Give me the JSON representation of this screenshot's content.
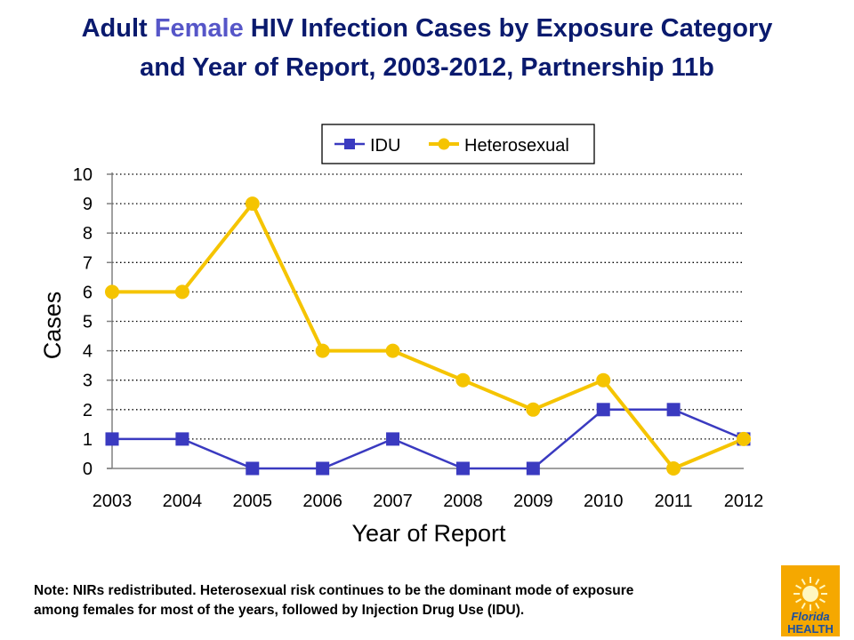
{
  "title": {
    "line1_part1": "Adult",
    "line1_accent": "Female",
    "line1_part2": "HIV Infection Cases by Exposure Category",
    "line2": "and Year of Report,  2003-2012, Partnership 11b"
  },
  "colors": {
    "title": "#0a1a6e",
    "title_accent": "#5656c8",
    "idu": "#3a3ac0",
    "heterosexual": "#f5c400"
  },
  "chart_data": {
    "type": "line",
    "x": [
      "2003",
      "2004",
      "2005",
      "2006",
      "2007",
      "2008",
      "2009",
      "2010",
      "2011",
      "2012"
    ],
    "series": [
      {
        "name": "IDU",
        "values": [
          1,
          1,
          0,
          0,
          1,
          0,
          0,
          2,
          2,
          1
        ],
        "color": "#3a3ac0",
        "marker": "square"
      },
      {
        "name": "Heterosexual",
        "values": [
          6,
          6,
          9,
          4,
          4,
          3,
          2,
          3,
          0,
          1
        ],
        "color": "#f5c400",
        "marker": "circle"
      }
    ],
    "xlabel": "Year of Report",
    "ylabel": "Cases",
    "ylim": [
      0,
      10
    ],
    "yticks": [
      0,
      1,
      2,
      3,
      4,
      5,
      6,
      7,
      8,
      9,
      10
    ],
    "grid": "horizontal dotted",
    "legend": "top-center"
  },
  "note": {
    "line1": "Note: NIRs redistributed.  Heterosexual risk continues to be the dominant mode of exposure",
    "line2": "among females for most of the years, followed by Injection Drug Use (IDU)."
  },
  "logo": {
    "line1": "Florida",
    "line2": "HEALTH"
  }
}
